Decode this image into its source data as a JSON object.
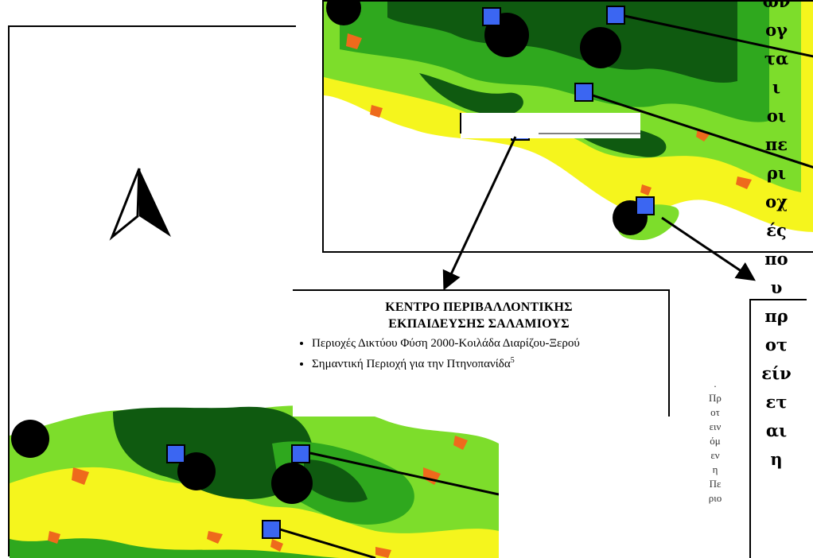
{
  "info_box": {
    "title_line1": "ΚΕΝΤΡΟ ΠΕΡΙΒΑΛΛΟΝΤΙΚΗΣ",
    "title_line2": "ΕΚΠΑΙΔΕΥΣΗΣ ΣΑΛΑΜΙΟΥΣ",
    "bullets": [
      "Περιοχές Δικτύου Φύση 2000-Κοιλάδα Διαρίζου-Ξερού",
      "Σημαντική Περιοχή για την Πτηνοπανίδα"
    ],
    "footnote_mark": "5"
  },
  "right_column_large": [
    "ων",
    "ογ",
    "τα",
    "ι",
    "οι",
    "πε",
    "ρι",
    "οχ",
    "ές",
    "πο",
    "υ",
    "πρ",
    "οτ",
    "είν",
    "ετ",
    "αι",
    "η"
  ],
  "right_column_small": [
    ".",
    "Πρ",
    "οτ",
    "ειν",
    "όμ",
    "εν",
    "η",
    "Πε",
    "ριο"
  ],
  "right_column_dot": ".",
  "legend_colors": {
    "dark_forest": "#0f5a10",
    "green": "#2fa81e",
    "light_green": "#7ddd2b",
    "yellow": "#f5f51d",
    "orange": "#ee6a1c",
    "marker": "#3b66f2",
    "site_dot": "#000000"
  }
}
